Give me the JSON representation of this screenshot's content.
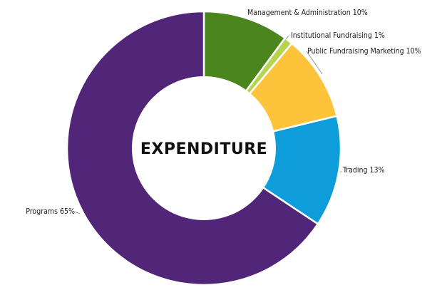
{
  "chart_data": {
    "type": "pie",
    "donut": true,
    "center_label": "EXPENDITURE",
    "title": "",
    "legend": "none",
    "slices": [
      {
        "label": "Management & Administration 10%",
        "value": 10,
        "color": "#4a861d"
      },
      {
        "label": "Institutional Fundraising 1%",
        "value": 1,
        "color": "#b6d44f"
      },
      {
        "label": "Public Fundraising Marketing 10%",
        "value": 10,
        "color": "#fdc33b"
      },
      {
        "label": "Trading 13%",
        "value": 13,
        "color": "#0e9ddb"
      },
      {
        "label": "Programs 65%",
        "value": 65,
        "color": "#512679"
      }
    ]
  }
}
